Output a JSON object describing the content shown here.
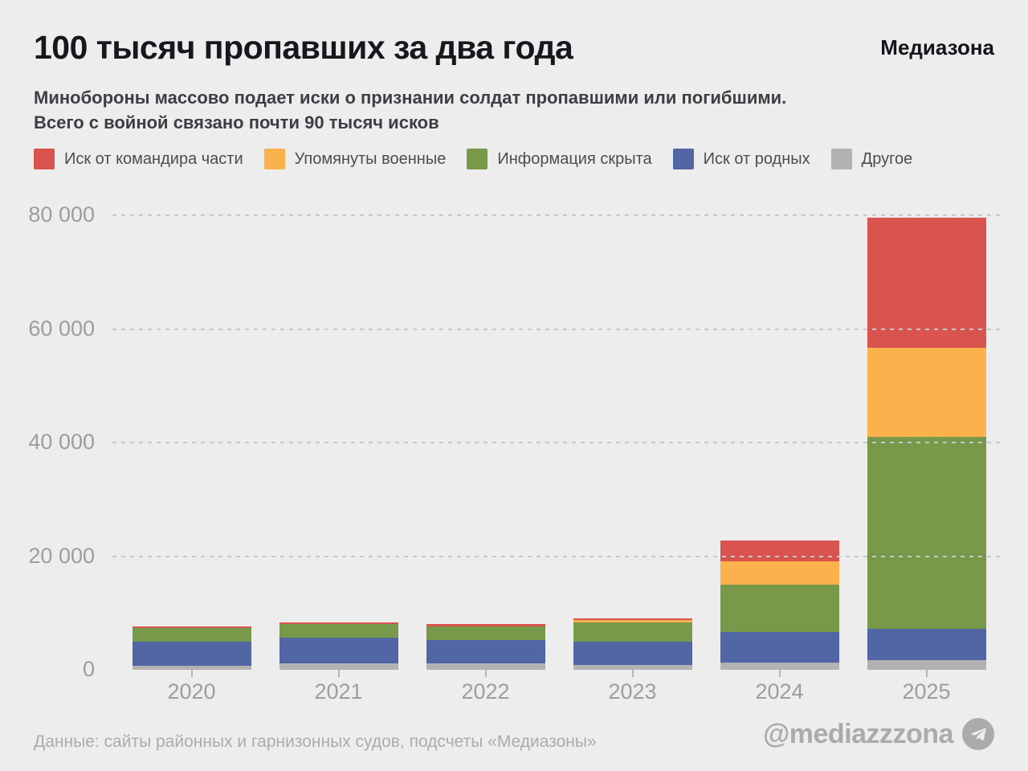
{
  "header": {
    "title": "100 тысяч пропавших за два года",
    "logo": "Медиазона",
    "subtitle_line1": "Минобороны массово подает иски о признании солдат пропавшими или погибшими.",
    "subtitle_line2": "Всего с войной связано почти 90 тысяч исков"
  },
  "colors": {
    "background": "#ededed",
    "red": "#d9534f",
    "orange": "#fbb24d",
    "green": "#78994a",
    "blue": "#5265a4",
    "gray": "#b2b2b2",
    "grid": "#c8c8c8",
    "axis_text": "#9d9da1"
  },
  "chart_data": {
    "type": "bar",
    "stacked": true,
    "title": "100 тысяч пропавших за два года",
    "categories": [
      "2020",
      "2021",
      "2022",
      "2023",
      "2024",
      "2025"
    ],
    "series": [
      {
        "name": "Иск от командира части",
        "color": "#d9534f",
        "values": [
          300,
          300,
          300,
          300,
          3700,
          22900
        ]
      },
      {
        "name": "Упомянуты военные",
        "color": "#fbb24d",
        "values": [
          0,
          0,
          0,
          500,
          4100,
          15700
        ]
      },
      {
        "name": "Информация скрыта",
        "color": "#78994a",
        "values": [
          2400,
          2400,
          2400,
          3300,
          8300,
          33800
        ]
      },
      {
        "name": "Иск от родных",
        "color": "#5265a4",
        "values": [
          4200,
          4500,
          4200,
          4200,
          5400,
          5500
        ]
      },
      {
        "name": "Другое",
        "color": "#b2b2b2",
        "values": [
          700,
          1100,
          1100,
          800,
          1300,
          1700
        ]
      }
    ],
    "totals": [
      7600,
      8300,
      8000,
      9100,
      22800,
      79600
    ],
    "xlabel": "",
    "ylabel": "",
    "ylim": [
      0,
      80000
    ],
    "yticks": [
      {
        "value": 80000,
        "label": "80 000"
      },
      {
        "value": 60000,
        "label": "60 000"
      },
      {
        "value": 40000,
        "label": "40 000"
      },
      {
        "value": 20000,
        "label": "20 000"
      },
      {
        "value": 0,
        "label": "0"
      }
    ],
    "grid": "horizontal-dashed",
    "legend_position": "top"
  },
  "footer": {
    "source": "Данные: сайты районных и гарнизонных судов, подсчеты «Медиазоны»",
    "handle": "@mediazzzona",
    "icon": "telegram-plane-icon"
  }
}
